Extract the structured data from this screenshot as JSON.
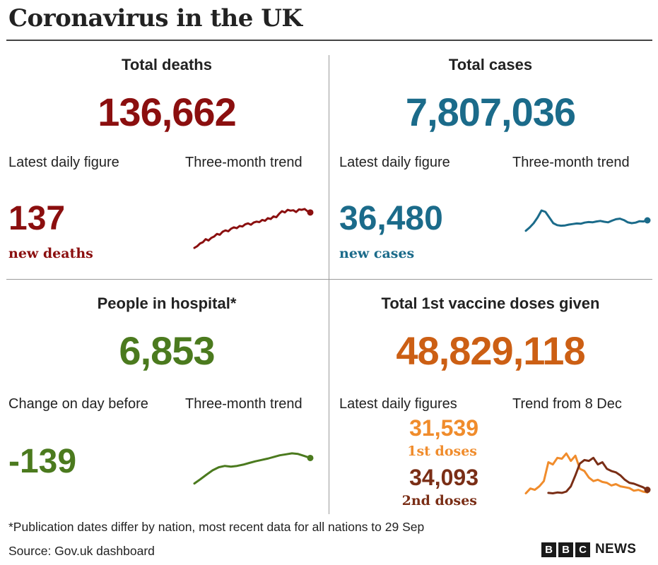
{
  "title": "Coronavirus in the UK",
  "colors": {
    "deaths": "#8b0f0f",
    "cases": "#1b6b8a",
    "hospital": "#4b7a1e",
    "vaccine": "#cc5f14",
    "first_doses": "#f08c2c",
    "second_doses": "#7a2e16"
  },
  "deaths": {
    "heading": "Total deaths",
    "total": "136,662",
    "latest_label": "Latest daily figure",
    "trend_label": "Three-month trend",
    "latest": "137",
    "latest_unit": "new deaths"
  },
  "cases": {
    "heading": "Total cases",
    "total": "7,807,036",
    "latest_label": "Latest daily figure",
    "trend_label": "Three-month trend",
    "latest": "36,480",
    "latest_unit": "new cases"
  },
  "hospital": {
    "heading": "People in hospital*",
    "total": "6,853",
    "latest_label": "Change on day before",
    "trend_label": "Three-month trend",
    "latest": "-139"
  },
  "vaccine": {
    "heading": "Total 1st vaccine doses given",
    "total": "48,829,118",
    "latest_label": "Latest daily figures",
    "trend_label": "Trend from 8 Dec",
    "first_value": "31,539",
    "first_unit": "1st doses",
    "second_value": "34,093",
    "second_unit": "2nd doses"
  },
  "footer": {
    "footnote": "*Publication dates differ by nation, most recent data for all nations to 29 Sep",
    "source": "Source: Gov.uk dashboard",
    "logo_letters": [
      "B",
      "B",
      "C"
    ],
    "logo_word": "NEWS"
  },
  "chart_data": [
    {
      "type": "line",
      "name": "deaths-trend",
      "title": "Three-month trend",
      "values": [
        8,
        12,
        18,
        21,
        28,
        25,
        31,
        34,
        40,
        38,
        45,
        48,
        46,
        52,
        55,
        53,
        58,
        57,
        62,
        64,
        61,
        66,
        68,
        67,
        72,
        70,
        76,
        74,
        80,
        78,
        86,
        92,
        89,
        95,
        93,
        94,
        90,
        96,
        95,
        97,
        92,
        89
      ]
    },
    {
      "type": "line",
      "name": "cases-trend",
      "title": "Three-month trend",
      "values": [
        28,
        40,
        55,
        75,
        100,
        95,
        75,
        55,
        48,
        46,
        47,
        50,
        52,
        54,
        53,
        57,
        59,
        58,
        61,
        63,
        60,
        58,
        64,
        69,
        71,
        66,
        58,
        55,
        57,
        62,
        61,
        65
      ]
    },
    {
      "type": "line",
      "name": "hospital-trend",
      "title": "Three-month trend",
      "values": [
        5,
        18,
        32,
        45,
        54,
        58,
        56,
        58,
        62,
        67,
        72,
        76,
        80,
        85,
        90,
        93,
        96,
        94,
        88,
        82
      ]
    },
    {
      "type": "line",
      "name": "vaccine-trend",
      "title": "Trend from 8 Dec",
      "series": [
        {
          "name": "1st doses",
          "values": [
            4,
            15,
            12,
            20,
            32,
            75,
            70,
            85,
            83,
            95,
            78,
            90,
            60,
            55,
            40,
            32,
            35,
            30,
            28,
            22,
            25,
            20,
            18,
            16,
            10,
            12,
            8,
            6
          ]
        },
        {
          "name": "2nd doses",
          "values": [
            null,
            null,
            null,
            null,
            null,
            5,
            4,
            6,
            5,
            8,
            20,
            45,
            72,
            80,
            78,
            85,
            70,
            75,
            60,
            55,
            52,
            45,
            35,
            28,
            26,
            22,
            18,
            12
          ]
        }
      ]
    }
  ]
}
